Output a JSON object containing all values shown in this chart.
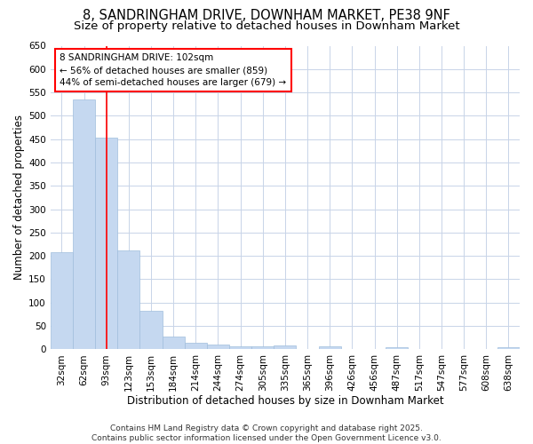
{
  "title_line1": "8, SANDRINGHAM DRIVE, DOWNHAM MARKET, PE38 9NF",
  "title_line2": "Size of property relative to detached houses in Downham Market",
  "xlabel": "Distribution of detached houses by size in Downham Market",
  "ylabel": "Number of detached properties",
  "categories": [
    "32sqm",
    "62sqm",
    "93sqm",
    "123sqm",
    "153sqm",
    "184sqm",
    "214sqm",
    "244sqm",
    "274sqm",
    "305sqm",
    "335sqm",
    "365sqm",
    "396sqm",
    "426sqm",
    "456sqm",
    "487sqm",
    "517sqm",
    "547sqm",
    "577sqm",
    "608sqm",
    "638sqm"
  ],
  "values": [
    207,
    535,
    453,
    211,
    82,
    27,
    14,
    11,
    7,
    7,
    8,
    0,
    6,
    0,
    0,
    5,
    0,
    0,
    0,
    0,
    5
  ],
  "bar_color": "#c5d8f0",
  "bar_edge_color": "#a0bedd",
  "red_line_x": 2.0,
  "annotation_line1": "8 SANDRINGHAM DRIVE: 102sqm",
  "annotation_line2": "← 56% of detached houses are smaller (859)",
  "annotation_line3": "44% of semi-detached houses are larger (679) →",
  "ylim": [
    0,
    650
  ],
  "yticks": [
    0,
    50,
    100,
    150,
    200,
    250,
    300,
    350,
    400,
    450,
    500,
    550,
    600,
    650
  ],
  "background_color": "#ffffff",
  "plot_bg_color": "#ffffff",
  "grid_color": "#c8d4e8",
  "footer_text": "Contains HM Land Registry data © Crown copyright and database right 2025.\nContains public sector information licensed under the Open Government Licence v3.0.",
  "title_fontsize": 10.5,
  "subtitle_fontsize": 9.5,
  "axis_label_fontsize": 8.5,
  "tick_fontsize": 7.5,
  "annotation_fontsize": 7.5,
  "footer_fontsize": 6.5
}
